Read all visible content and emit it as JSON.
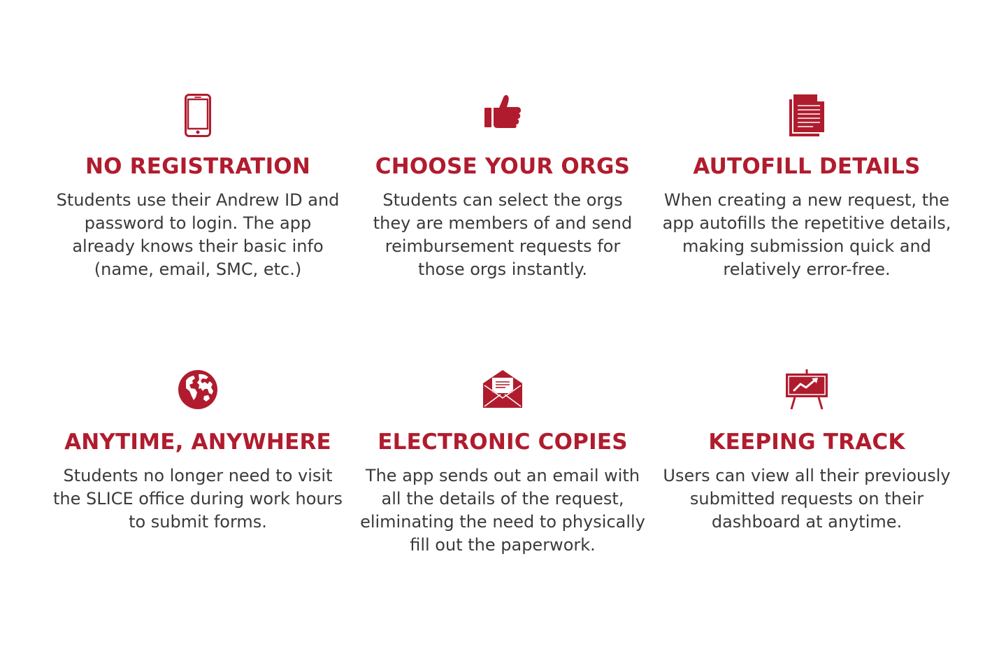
{
  "accent_color": "#b01c2e",
  "features": [
    {
      "icon": "smartphone-icon",
      "title": "NO REGISTRATION",
      "description": "Students use their Andrew ID and password to login. The app already knows their basic info (name, email, SMC, etc.)"
    },
    {
      "icon": "thumbs-up-icon",
      "title": "CHOOSE YOUR ORGS",
      "description": "Students can select the orgs they are members of and send reimbursement requests for those orgs instantly."
    },
    {
      "icon": "document-icon",
      "title": "AUTOFILL DETAILS",
      "description": "When creating a new request, the app autofills the repetitive details, making submission quick and relatively error-free."
    },
    {
      "icon": "globe-icon",
      "title": "ANYTIME, ANYWHERE",
      "description": "Students no longer need to visit the SLICE office during work hours to submit forms."
    },
    {
      "icon": "envelope-icon",
      "title": "ELECTRONIC COPIES",
      "description": "The app sends out an email with all the details of the request, eliminating the need to physically fill out the paperwork."
    },
    {
      "icon": "presentation-chart-icon",
      "title": "KEEPING TRACK",
      "description": "Users can view all their previously submitted requests on their dashboard at anytime."
    }
  ]
}
